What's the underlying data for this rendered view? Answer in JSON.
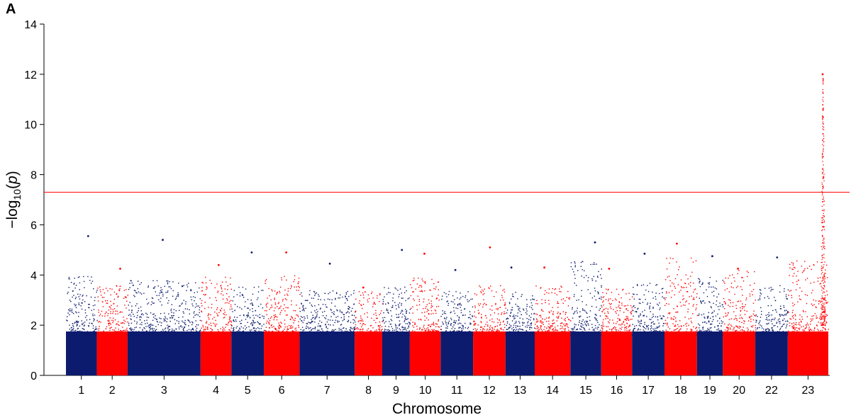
{
  "panel_label": "A",
  "chart_data": {
    "type": "scatter",
    "subtype": "manhattan",
    "title": "",
    "xlabel": "Chromosome",
    "ylabel_parts": {
      "prefix": "−log",
      "subscript": "10",
      "open": "(",
      "var": "p",
      "close": ")"
    },
    "ylim": [
      0,
      14
    ],
    "yticks": [
      0,
      2,
      4,
      6,
      8,
      10,
      12,
      14
    ],
    "grid": false,
    "significance_threshold": 7.3,
    "colors": {
      "odd": "#0d1b6e",
      "even": "#ff0000",
      "threshold": "#ff0000"
    },
    "chromosomes": [
      {
        "label": "1",
        "relative_length": 0.95,
        "peak": 4.05,
        "max_point": 5.55
      },
      {
        "label": "2",
        "relative_length": 0.95,
        "peak": 3.6,
        "max_point": 4.25
      },
      {
        "label": "3",
        "relative_length": 2.25,
        "peak": 3.8,
        "max_point": 5.4
      },
      {
        "label": "4",
        "relative_length": 0.95,
        "peak": 4.0,
        "max_point": 4.4
      },
      {
        "label": "5",
        "relative_length": 1.0,
        "peak": 3.6,
        "max_point": 4.9
      },
      {
        "label": "6",
        "relative_length": 1.1,
        "peak": 4.0,
        "max_point": 4.9
      },
      {
        "label": "7",
        "relative_length": 1.7,
        "peak": 3.4,
        "max_point": 4.45
      },
      {
        "label": "8",
        "relative_length": 0.85,
        "peak": 3.4,
        "max_point": 3.5
      },
      {
        "label": "9",
        "relative_length": 0.85,
        "peak": 3.6,
        "max_point": 5.0
      },
      {
        "label": "10",
        "relative_length": 0.95,
        "peak": 3.9,
        "max_point": 4.85
      },
      {
        "label": "11",
        "relative_length": 1.0,
        "peak": 3.4,
        "max_point": 4.2
      },
      {
        "label": "12",
        "relative_length": 1.0,
        "peak": 3.6,
        "max_point": 5.1
      },
      {
        "label": "13",
        "relative_length": 0.9,
        "peak": 3.4,
        "max_point": 4.3
      },
      {
        "label": "14",
        "relative_length": 1.1,
        "peak": 3.6,
        "max_point": 4.3
      },
      {
        "label": "15",
        "relative_length": 0.95,
        "peak": 4.6,
        "max_point": 5.3
      },
      {
        "label": "16",
        "relative_length": 0.95,
        "peak": 3.5,
        "max_point": 4.25
      },
      {
        "label": "17",
        "relative_length": 1.0,
        "peak": 3.7,
        "max_point": 4.85
      },
      {
        "label": "18",
        "relative_length": 1.0,
        "peak": 4.7,
        "max_point": 5.25
      },
      {
        "label": "19",
        "relative_length": 0.8,
        "peak": 4.0,
        "max_point": 4.75
      },
      {
        "label": "20",
        "relative_length": 1.0,
        "peak": 4.2,
        "max_point": 4.25
      },
      {
        "label": "22",
        "relative_length": 1.0,
        "peak": 3.6,
        "max_point": 4.7
      },
      {
        "label": "23",
        "relative_length": 1.25,
        "peak": 4.6,
        "max_point": 12.0
      }
    ]
  }
}
